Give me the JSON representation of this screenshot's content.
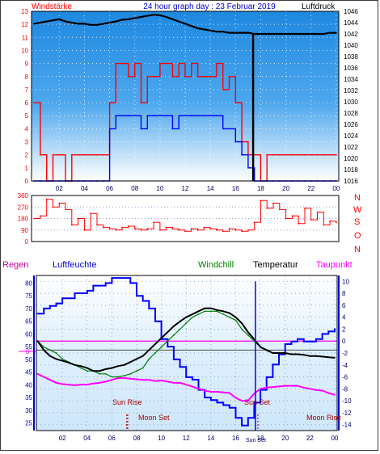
{
  "header": {
    "left_label": "Windstärke",
    "title": "24 hour graph day : 23 Februar 2019",
    "right_label": "Luftdruck"
  },
  "direction_letters": [
    "N",
    "W",
    "S",
    "O",
    "N"
  ],
  "legend": {
    "regen": "Regen",
    "luftfeuchte": "Luftfeuchte",
    "windchill": "Windchill",
    "temperatur": "Temperatur",
    "taupunkt": "Taupunkt"
  },
  "markers": {
    "sun_rise": "Sun Rise",
    "moon_set": "Moon Set",
    "sun_set": "Sun Set",
    "moon_rise": "Moon Rise",
    "sun_set_axis": "Sun Set"
  },
  "colors": {
    "wind_gust": "#ff0000",
    "wind_avg": "#0000ff",
    "pressure": "#000000",
    "direction": "#ff0000",
    "humidity": "#0000ff",
    "windchill": "#008000",
    "temperature": "#000000",
    "dewpoint": "#ff00ff",
    "panel_top": "#1e88e0",
    "panel_bottom": "#ffffff"
  },
  "chart_data": [
    {
      "type": "line",
      "title": "24 hour graph day : 23 Februar 2019",
      "x_ticks": [
        "02",
        "04",
        "06",
        "08",
        "10",
        "12",
        "14",
        "16",
        "18",
        "20",
        "22",
        "00"
      ],
      "ylabel_left": "Windstärke",
      "ylim_left": [
        0,
        13
      ],
      "y_ticks_left": [
        0,
        1,
        2,
        3,
        4,
        5,
        6,
        7,
        8,
        9,
        10,
        11,
        12,
        13
      ],
      "ylabel_right": "Luftdruck",
      "ylim_right": [
        1016,
        1046
      ],
      "y_ticks_right": [
        1016,
        1018,
        1020,
        1022,
        1024,
        1026,
        1028,
        1030,
        1032,
        1034,
        1036,
        1038,
        1040,
        1042,
        1044,
        1046
      ],
      "x_hours": [
        0,
        0.5,
        1,
        1.5,
        2,
        2.5,
        3,
        3.5,
        4,
        4.5,
        5,
        5.5,
        6,
        6.5,
        7,
        7.5,
        8,
        8.5,
        9,
        9.5,
        10,
        10.5,
        11,
        11.5,
        12,
        12.5,
        13,
        13.5,
        14,
        14.5,
        15,
        15.5,
        16,
        16.5,
        17,
        17.5,
        18,
        18.5,
        19,
        19.5,
        20,
        20.5,
        21,
        21.5,
        22,
        22.5,
        23,
        23.5,
        24
      ],
      "series": [
        {
          "key": "gust",
          "values": [
            6,
            2,
            0,
            2,
            2,
            0,
            2,
            2,
            2,
            2,
            2,
            2,
            6,
            9,
            9,
            8,
            9,
            6,
            8,
            8,
            9,
            9,
            8,
            9,
            8,
            9,
            8,
            8,
            8,
            9,
            7,
            8,
            6,
            3,
            2,
            2,
            0,
            2,
            2,
            2,
            2,
            2,
            2,
            2,
            2,
            2,
            2,
            2,
            2
          ]
        },
        {
          "key": "avg",
          "values": [
            0,
            0,
            0,
            0,
            0,
            0,
            0,
            0,
            0,
            0,
            0,
            0,
            4,
            5,
            5,
            5,
            5,
            4,
            5,
            5,
            5,
            5,
            4,
            5,
            5,
            5,
            5,
            5,
            5,
            5,
            4,
            4,
            3,
            2,
            1,
            0,
            0,
            0,
            0,
            0,
            0,
            0,
            0,
            0,
            0,
            0,
            0,
            0,
            0
          ]
        },
        {
          "key": "pressure",
          "values": [
            1043.8,
            1044.0,
            1044.2,
            1044.4,
            1044.6,
            1044.2,
            1044.0,
            1043.8,
            1043.8,
            1043.6,
            1043.6,
            1043.8,
            1044.0,
            1044.2,
            1044.5,
            1044.6,
            1044.8,
            1045.0,
            1045.2,
            1045.4,
            1045.3,
            1045.0,
            1044.6,
            1044.2,
            1043.8,
            1043.4,
            1043.0,
            1042.8,
            1042.6,
            1042.4,
            1042.4,
            1042.2,
            1042.2,
            1042.2,
            1042.2,
            1042.0,
            1042.0,
            1042.0,
            1042.0,
            1042.0,
            1042.0,
            1042.0,
            1042.0,
            1042.0,
            1042.0,
            1042.0,
            1042.0,
            1042.2,
            1042.2
          ]
        }
      ],
      "pressure_drop_hour": 17.4
    },
    {
      "type": "line",
      "ylim": [
        0,
        360
      ],
      "y_ticks": [
        0,
        90,
        180,
        270,
        360
      ],
      "x_hours": [
        0,
        0.5,
        1,
        1.5,
        2,
        2.5,
        3,
        3.5,
        4,
        4.5,
        5,
        5.5,
        6,
        6.5,
        7,
        7.5,
        8,
        8.5,
        9,
        9.5,
        10,
        10.5,
        11,
        11.5,
        12,
        12.5,
        13,
        13.5,
        14,
        14.5,
        15,
        15.5,
        16,
        16.5,
        17,
        17.5,
        18,
        18.5,
        19,
        19.5,
        20,
        20.5,
        21,
        21.5,
        22,
        22.5,
        23,
        23.5,
        24
      ],
      "series": [
        {
          "key": "direction",
          "values": [
            180,
            200,
            330,
            270,
            300,
            250,
            130,
            180,
            90,
            220,
            130,
            110,
            100,
            90,
            110,
            120,
            100,
            90,
            100,
            150,
            90,
            110,
            100,
            90,
            80,
            100,
            90,
            110,
            100,
            90,
            80,
            100,
            90,
            80,
            90,
            150,
            320,
            260,
            300,
            250,
            180,
            200,
            140,
            260,
            170,
            230,
            130,
            160,
            150
          ]
        }
      ]
    },
    {
      "type": "line",
      "ylabel_left": "Luftfeuchte",
      "ylim_left": [
        22,
        83
      ],
      "y_ticks_left": [
        25,
        30,
        35,
        40,
        45,
        50,
        55,
        60,
        65,
        70,
        75,
        80
      ],
      "ylabel_right": "Temperatur",
      "ylim_right": [
        -15,
        11
      ],
      "y_ticks_right": [
        -14,
        -12,
        -10,
        -8,
        -6,
        -4,
        -2,
        0,
        2,
        4,
        6,
        8,
        10
      ],
      "regen_axis_label": "0",
      "x_ticks": [
        "02",
        "04",
        "06",
        "08",
        "10",
        "12",
        "14",
        "16",
        "18",
        "20",
        "22",
        "00"
      ],
      "x_hours": [
        0,
        0.5,
        1,
        1.5,
        2,
        2.5,
        3,
        3.5,
        4,
        4.5,
        5,
        5.5,
        6,
        6.5,
        7,
        7.5,
        8,
        8.5,
        9,
        9.5,
        10,
        10.5,
        11,
        11.5,
        12,
        12.5,
        13,
        13.5,
        14,
        14.5,
        15,
        15.5,
        16,
        16.5,
        17,
        17.5,
        18,
        18.5,
        19,
        19.5,
        20,
        20.5,
        21,
        21.5,
        22,
        22.5,
        23,
        23.5,
        24
      ],
      "series": [
        {
          "name": "Luftfeuchte",
          "key": "humidity",
          "values": [
            68,
            70,
            71,
            72,
            74,
            74,
            76,
            76,
            77,
            79,
            79,
            80,
            82,
            82,
            82,
            80,
            75,
            73,
            70,
            65,
            58,
            55,
            50,
            47,
            43,
            42,
            38,
            35,
            34,
            33,
            32,
            31,
            27,
            24,
            27,
            33,
            38,
            43,
            48,
            52,
            56,
            57,
            58,
            57,
            57,
            58,
            60,
            61,
            62
          ]
        },
        {
          "name": "Windchill",
          "key": "windchill",
          "values": [
            0,
            -1,
            -1.5,
            -2,
            -3,
            -3.5,
            -4,
            -4.5,
            -5,
            -5,
            -5.5,
            -5.5,
            -6,
            -6,
            -5.8,
            -5.5,
            -5,
            -4.5,
            -3,
            -2,
            -1,
            0,
            1,
            2,
            3,
            4,
            4.5,
            5,
            5,
            5,
            4.5,
            4,
            3.5,
            2,
            1,
            0,
            -1,
            -1.5,
            -2,
            -2,
            -2,
            -2.2,
            -2.2,
            -2.3,
            -2.5,
            -2.5,
            -2.6,
            -2.7,
            -2.8
          ]
        },
        {
          "name": "Temperatur",
          "key": "temperature",
          "values": [
            0,
            -1.5,
            -2.5,
            -3,
            -3.3,
            -3.6,
            -4,
            -4.2,
            -4.5,
            -5,
            -5,
            -4.7,
            -4.5,
            -4.2,
            -4,
            -3.5,
            -3,
            -2.5,
            -1.5,
            -0.5,
            0.5,
            1.5,
            2.5,
            3.3,
            4,
            4.5,
            5,
            5.5,
            5.5,
            5.2,
            5,
            4.7,
            4,
            3,
            1.5,
            0.3,
            -1,
            -1.5,
            -2,
            -2,
            -2,
            -2.2,
            -2.2,
            -2.3,
            -2.5,
            -2.5,
            -2.6,
            -2.7,
            -2.8
          ]
        },
        {
          "name": "Taupunkt",
          "key": "dewpoint",
          "values": [
            -5.5,
            -6,
            -6.5,
            -7,
            -7.2,
            -7.3,
            -7.4,
            -7.3,
            -7.3,
            -7.1,
            -7,
            -6.8,
            -6.5,
            -6.2,
            -6.2,
            -6.3,
            -6.4,
            -6.5,
            -6.5,
            -6.7,
            -6.6,
            -6.8,
            -7,
            -7,
            -7.3,
            -7.6,
            -8,
            -8.3,
            -8.5,
            -8.5,
            -8.6,
            -8.7,
            -9.5,
            -10,
            -10,
            -8.8,
            -8,
            -7.8,
            -7.7,
            -7.6,
            -7.5,
            -7.5,
            -7.5,
            -7.8,
            -8,
            -8.2,
            -8.3,
            -8.7,
            -9
          ]
        }
      ],
      "sun_rise_hour": 7.2,
      "sun_set_hour": 17.6
    }
  ]
}
